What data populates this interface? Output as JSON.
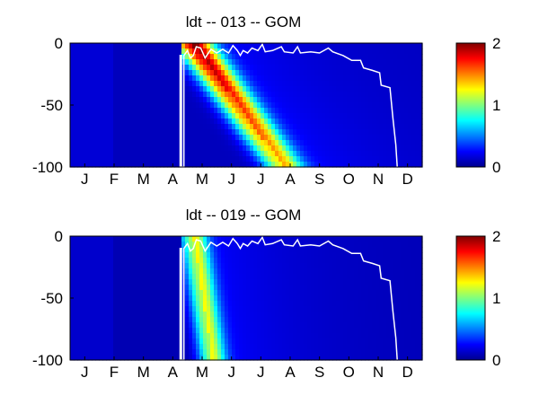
{
  "chart_data": [
    {
      "type": "heatmap",
      "title": "ldt -- 013 -- GOM",
      "x_tick_labels": [
        "J",
        "F",
        "M",
        "A",
        "M",
        "J",
        "J",
        "A",
        "S",
        "O",
        "N",
        "D"
      ],
      "y_ticks": [
        0,
        -50,
        -100
      ],
      "y_tick_labels": [
        "0",
        "-50",
        "-100"
      ],
      "ylim": [
        -100,
        0
      ],
      "xlim_months": [
        0,
        12
      ],
      "colormap": "jet",
      "color_range": [
        0,
        2
      ],
      "colorbar_ticks": [
        "0",
        "1",
        "2"
      ],
      "band": {
        "start_month": 4.15,
        "slope_months_per_m": 0.0315,
        "width_months": 0.65,
        "peak": 1.75,
        "depth_decay": 0.45,
        "background": 0.12
      },
      "mixed_layer_contour": [
        [
          3.75,
          -100
        ],
        [
          3.75,
          -10
        ],
        [
          3.8,
          -10
        ],
        [
          3.8,
          -100
        ],
        [
          3.88,
          -100
        ],
        [
          3.88,
          -10
        ],
        [
          4.0,
          -6
        ],
        [
          4.1,
          -12
        ],
        [
          4.2,
          -10
        ],
        [
          4.3,
          -3
        ],
        [
          4.45,
          -4
        ],
        [
          4.6,
          -12
        ],
        [
          4.8,
          -5
        ],
        [
          5.0,
          -8
        ],
        [
          5.2,
          -5
        ],
        [
          5.4,
          -8
        ],
        [
          5.55,
          -2
        ],
        [
          5.7,
          -6
        ],
        [
          5.8,
          -10
        ],
        [
          5.9,
          -6
        ],
        [
          6.05,
          -8
        ],
        [
          6.2,
          -4
        ],
        [
          6.4,
          -6
        ],
        [
          6.55,
          -1
        ],
        [
          6.65,
          -7
        ],
        [
          6.9,
          -6
        ],
        [
          7.2,
          -3
        ],
        [
          7.3,
          -7
        ],
        [
          7.6,
          -8
        ],
        [
          7.75,
          -3
        ],
        [
          7.85,
          -8
        ],
        [
          8.2,
          -7
        ],
        [
          8.5,
          -8
        ],
        [
          8.8,
          -4
        ],
        [
          8.95,
          -7
        ],
        [
          9.3,
          -10
        ],
        [
          9.6,
          -14
        ],
        [
          9.9,
          -14
        ],
        [
          10.0,
          -20
        ],
        [
          10.3,
          -22
        ],
        [
          10.55,
          -24
        ],
        [
          10.6,
          -34
        ],
        [
          10.9,
          -36
        ],
        [
          11.0,
          -60
        ],
        [
          11.1,
          -82
        ],
        [
          11.15,
          -100
        ]
      ]
    },
    {
      "type": "heatmap",
      "title": "ldt -- 019 -- GOM",
      "x_tick_labels": [
        "J",
        "F",
        "M",
        "A",
        "M",
        "J",
        "J",
        "A",
        "S",
        "O",
        "N",
        "D"
      ],
      "y_ticks": [
        0,
        -50,
        -100
      ],
      "y_tick_labels": [
        "0",
        "-50",
        "-100"
      ],
      "ylim": [
        -100,
        0
      ],
      "xlim_months": [
        0,
        12
      ],
      "colormap": "jet",
      "color_range": [
        0,
        2
      ],
      "colorbar_ticks": [
        "0",
        "1",
        "2"
      ],
      "band": {
        "start_month": 4.2,
        "slope_months_per_m": 0.0065,
        "width_months": 0.45,
        "peak": 1.0,
        "depth_decay": 0.05,
        "background": 0.1
      },
      "mixed_layer_contour": [
        [
          3.75,
          -100
        ],
        [
          3.75,
          -10
        ],
        [
          3.8,
          -10
        ],
        [
          3.8,
          -100
        ],
        [
          3.88,
          -100
        ],
        [
          3.88,
          -10
        ],
        [
          4.0,
          -6
        ],
        [
          4.1,
          -12
        ],
        [
          4.2,
          -10
        ],
        [
          4.3,
          -3
        ],
        [
          4.45,
          -4
        ],
        [
          4.6,
          -12
        ],
        [
          4.8,
          -5
        ],
        [
          5.0,
          -8
        ],
        [
          5.2,
          -5
        ],
        [
          5.4,
          -8
        ],
        [
          5.55,
          -2
        ],
        [
          5.7,
          -6
        ],
        [
          5.8,
          -10
        ],
        [
          5.9,
          -6
        ],
        [
          6.05,
          -8
        ],
        [
          6.2,
          -4
        ],
        [
          6.4,
          -6
        ],
        [
          6.55,
          -1
        ],
        [
          6.65,
          -7
        ],
        [
          6.9,
          -6
        ],
        [
          7.2,
          -3
        ],
        [
          7.3,
          -7
        ],
        [
          7.6,
          -8
        ],
        [
          7.75,
          -3
        ],
        [
          7.85,
          -8
        ],
        [
          8.2,
          -7
        ],
        [
          8.5,
          -8
        ],
        [
          8.8,
          -4
        ],
        [
          8.95,
          -7
        ],
        [
          9.3,
          -10
        ],
        [
          9.6,
          -14
        ],
        [
          9.9,
          -14
        ],
        [
          10.0,
          -20
        ],
        [
          10.3,
          -22
        ],
        [
          10.55,
          -24
        ],
        [
          10.6,
          -34
        ],
        [
          10.9,
          -36
        ],
        [
          11.0,
          -60
        ],
        [
          11.1,
          -82
        ],
        [
          11.15,
          -100
        ]
      ]
    }
  ]
}
